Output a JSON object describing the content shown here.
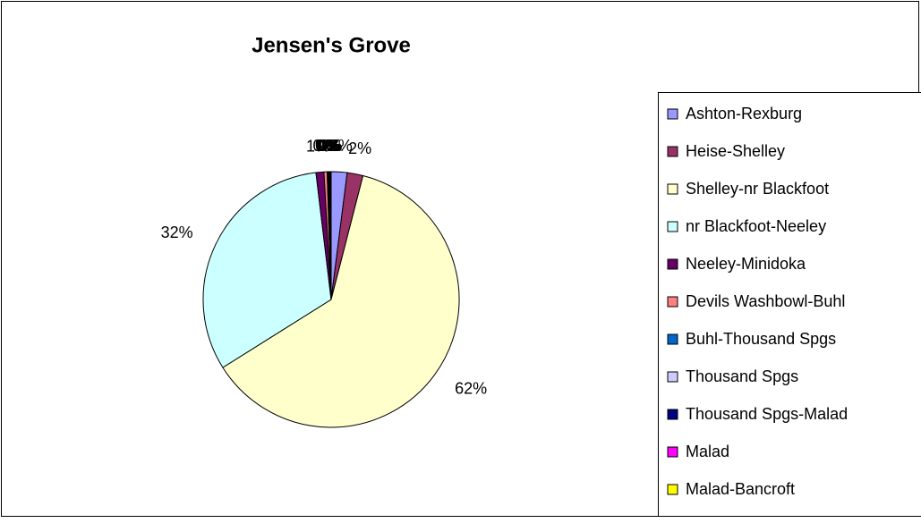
{
  "chart_data": {
    "type": "pie",
    "title": "Jensen's Grove",
    "categories": [
      "Ashton-Rexburg",
      "Heise-Shelley",
      "Shelley-nr Blackfoot",
      "nr Blackfoot-Neeley",
      "Neeley-Minidoka",
      "Devils Washbowl-Buhl",
      "Buhl-Thousand Spgs",
      "Thousand Spgs",
      "Thousand Spgs-Malad",
      "Malad",
      "Malad-Bancroft"
    ],
    "values": [
      2,
      2,
      62,
      32,
      1,
      0.4,
      0.1,
      0.1,
      0.1,
      0.1,
      0.1
    ],
    "value_labels": [
      "2%",
      "2%",
      "62%",
      "32%",
      "1%",
      "0%",
      "0%",
      "0%",
      "0%",
      "0%",
      "0%"
    ],
    "colors": [
      "#9999ff",
      "#993366",
      "#ffffcc",
      "#ccffff",
      "#660066",
      "#ff8080",
      "#0066cc",
      "#ccccff",
      "#000080",
      "#ff00ff",
      "#ffff00"
    ],
    "legend": "right"
  }
}
